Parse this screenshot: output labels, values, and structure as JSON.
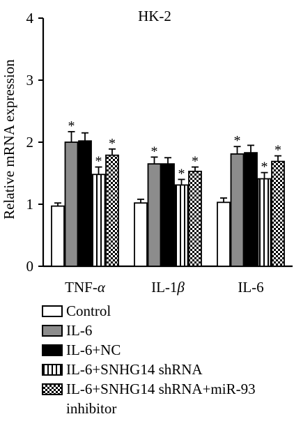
{
  "chart_data": {
    "type": "bar",
    "title": "HK-2",
    "xlabel": "",
    "ylabel": "Relative mRNA expression",
    "ylim": [
      0,
      4
    ],
    "yticks": [
      "0",
      "1",
      "2",
      "3",
      "4"
    ],
    "categories": [
      "TNF-α",
      "IL-1β",
      "IL-6"
    ],
    "category_labels": [
      {
        "text": "TNF-",
        "italic": "α"
      },
      {
        "text": "IL-1",
        "italic": "β"
      },
      {
        "text": "IL-6",
        "italic": ""
      }
    ],
    "series": [
      {
        "name": "Control",
        "values": [
          0.97,
          1.02,
          1.03
        ],
        "errors": [
          0.05,
          0.06,
          0.07
        ],
        "significant": [
          false,
          false,
          false
        ],
        "pattern": "white"
      },
      {
        "name": "IL-6",
        "values": [
          2.0,
          1.65,
          1.81
        ],
        "errors": [
          0.17,
          0.11,
          0.12
        ],
        "significant": [
          true,
          true,
          true
        ],
        "pattern": "gray"
      },
      {
        "name": "IL-6+NC",
        "values": [
          2.02,
          1.65,
          1.83
        ],
        "errors": [
          0.13,
          0.1,
          0.12
        ],
        "significant": [
          false,
          false,
          false
        ],
        "pattern": "black"
      },
      {
        "name": "IL-6+SNHG14 shRNA",
        "values": [
          1.48,
          1.31,
          1.41
        ],
        "errors": [
          0.12,
          0.09,
          0.1
        ],
        "significant": [
          true,
          true,
          true
        ],
        "pattern": "vstripe"
      },
      {
        "name": "IL-6+SNHG14 shRNA+miR-93 inhibitor",
        "values": [
          1.79,
          1.53,
          1.69
        ],
        "errors": [
          0.1,
          0.07,
          0.09
        ],
        "significant": [
          true,
          true,
          true
        ],
        "pattern": "checker"
      }
    ],
    "significance_marker": "*",
    "grid": false,
    "legend_position": "bottom"
  },
  "colors": {
    "gray_bar": "#8c8c8c",
    "black_bar": "#000000",
    "white_bar": "#ffffff"
  }
}
